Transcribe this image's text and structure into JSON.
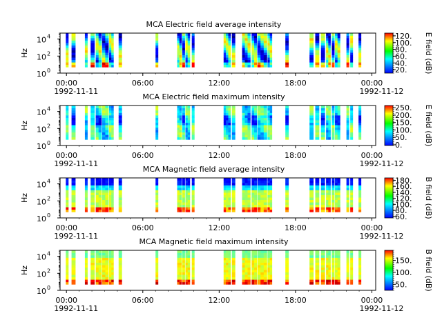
{
  "chart_data": [
    {
      "type": "heatmap",
      "title": "MCA  Electric field average intensity",
      "ylabel": "Hz",
      "colorbar_label": "E field (dB)",
      "colorbar_ticks": [
        "20.",
        "40.",
        "60.",
        "80.",
        "100.",
        "120."
      ],
      "colorbar_range": [
        10,
        128
      ],
      "ylim": [
        1,
        50000
      ],
      "yscale": "log",
      "yticks": [
        {
          "label": "10",
          "exp": "0",
          "value": 1
        },
        {
          "label": "10",
          "exp": "2",
          "value": 100
        },
        {
          "label": "10",
          "exp": "4",
          "value": 10000
        }
      ],
      "xticks": [
        "00:00",
        "06:00",
        "12:00",
        "18:00",
        "00:00"
      ],
      "x_dates": [
        "1992-11-11",
        "1992-11-12"
      ],
      "xlim_hours": [
        -0.5,
        24.3
      ],
      "pattern": "e_avg",
      "seed": 1
    },
    {
      "type": "heatmap",
      "title": "MCA  Electric field maximum intensity",
      "ylabel": "Hz",
      "colorbar_label": "E field (dB)",
      "colorbar_ticks": [
        "0.",
        "50.",
        "100.",
        "150.",
        "200.",
        "250."
      ],
      "colorbar_range": [
        -5,
        265
      ],
      "ylim": [
        1,
        50000
      ],
      "yscale": "log",
      "yticks": [
        {
          "label": "10",
          "exp": "0",
          "value": 1
        },
        {
          "label": "10",
          "exp": "2",
          "value": 100
        },
        {
          "label": "10",
          "exp": "4",
          "value": 10000
        }
      ],
      "xticks": [
        "00:00",
        "06:00",
        "12:00",
        "18:00",
        "00:00"
      ],
      "x_dates": [
        "1992-11-11",
        "1992-11-12"
      ],
      "xlim_hours": [
        -0.5,
        24.3
      ],
      "pattern": "e_max",
      "seed": 2
    },
    {
      "type": "heatmap",
      "title": "MCA  Magnetic field average intensity",
      "ylabel": "Hz",
      "colorbar_label": "B field (dB)",
      "colorbar_ticks": [
        "60.",
        "80.",
        "100.",
        "120.",
        "140.",
        "160.",
        "180."
      ],
      "colorbar_range": [
        55,
        188
      ],
      "ylim": [
        1,
        50000
      ],
      "yscale": "log",
      "yticks": [
        {
          "label": "10",
          "exp": "0",
          "value": 1
        },
        {
          "label": "10",
          "exp": "2",
          "value": 100
        },
        {
          "label": "10",
          "exp": "4",
          "value": 10000
        }
      ],
      "xticks": [
        "00:00",
        "06:00",
        "12:00",
        "18:00",
        "00:00"
      ],
      "x_dates": [
        "1992-11-11",
        "1992-11-12"
      ],
      "xlim_hours": [
        -0.5,
        24.3
      ],
      "pattern": "b_avg",
      "seed": 3
    },
    {
      "type": "heatmap",
      "title": "MCA  Magnetic field maximum intensity",
      "ylabel": "Hz",
      "colorbar_label": "B field (dB)",
      "colorbar_ticks": [
        "50.",
        "100.",
        "150."
      ],
      "colorbar_range": [
        25,
        192
      ],
      "ylim": [
        1,
        50000
      ],
      "yscale": "log",
      "yticks": [
        {
          "label": "10",
          "exp": "0",
          "value": 1
        },
        {
          "label": "10",
          "exp": "2",
          "value": 100
        },
        {
          "label": "10",
          "exp": "4",
          "value": 10000
        }
      ],
      "xticks": [
        "00:00",
        "06:00",
        "12:00",
        "18:00",
        "00:00"
      ],
      "x_dates": [
        "1992-11-11",
        "1992-11-12"
      ],
      "xlim_hours": [
        -0.5,
        24.3
      ],
      "pattern": "b_max",
      "seed": 4
    }
  ],
  "data_segments_hours": [
    [
      -0.05,
      0.15
    ],
    [
      0.4,
      0.7
    ],
    [
      1.45,
      1.65
    ],
    [
      1.9,
      2.2
    ],
    [
      2.3,
      2.75
    ],
    [
      2.8,
      3.3
    ],
    [
      3.35,
      3.7
    ],
    [
      4.1,
      4.35
    ],
    [
      7.0,
      7.2
    ],
    [
      8.7,
      9.05
    ],
    [
      9.1,
      9.3
    ],
    [
      9.35,
      9.7
    ],
    [
      9.85,
      10.05
    ],
    [
      12.35,
      12.9
    ],
    [
      13.0,
      13.25
    ],
    [
      13.8,
      14.45
    ],
    [
      14.55,
      14.95
    ],
    [
      15.0,
      15.75
    ],
    [
      15.8,
      16.15
    ],
    [
      17.2,
      17.45
    ],
    [
      19.1,
      19.4
    ],
    [
      19.55,
      19.85
    ],
    [
      20.0,
      20.3
    ],
    [
      20.4,
      20.75
    ],
    [
      20.85,
      21.05
    ],
    [
      21.1,
      21.5
    ],
    [
      22.0,
      22.2
    ],
    [
      22.3,
      22.5
    ],
    [
      22.95,
      23.15
    ]
  ],
  "frequency_range_hz": [
    5,
    50000
  ]
}
